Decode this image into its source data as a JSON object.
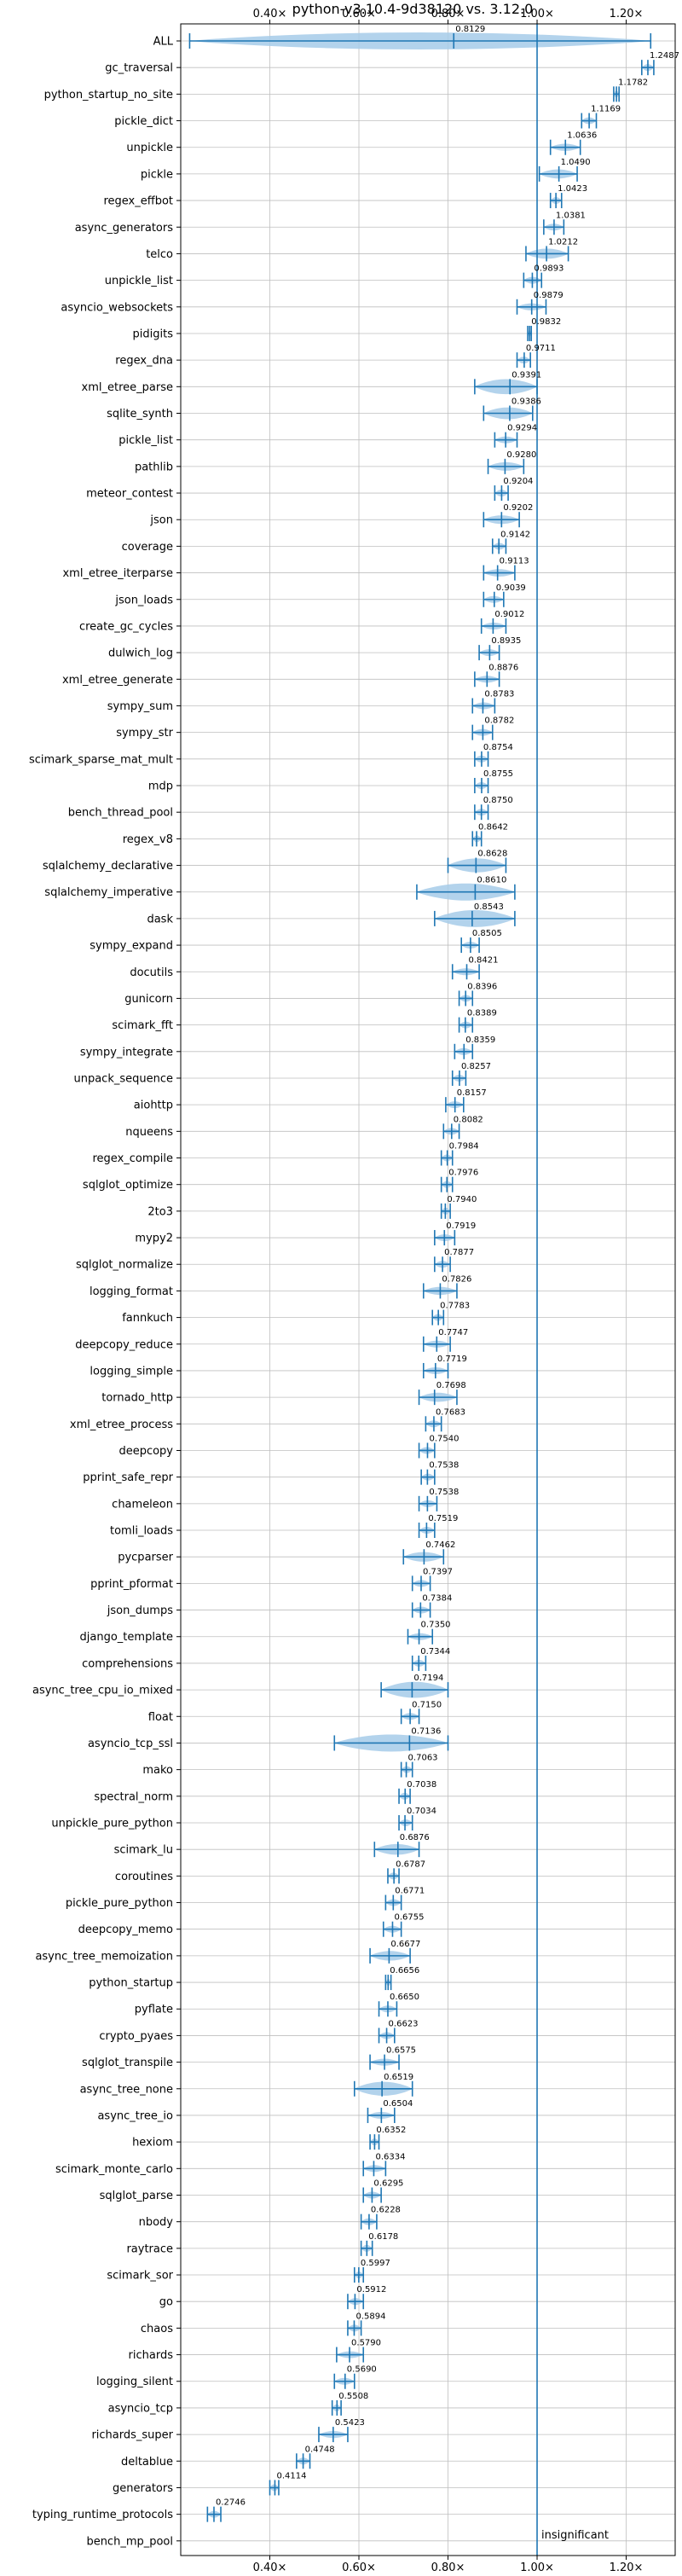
{
  "chart_data": {
    "type": "violin",
    "title": "python-v3.10.4-9d38120 vs. 3.12.0",
    "x_ticks": [
      "0.40×",
      "0.60×",
      "0.80×",
      "1.00×",
      "1.20×"
    ],
    "x_tick_values": [
      0.4,
      0.6,
      0.8,
      1.0,
      1.2
    ],
    "xlim": [
      0.2,
      1.31
    ],
    "grid": true,
    "reference_line": 1.0,
    "colors": {
      "violin": "#a6cbe9",
      "bar": "#1f77b4",
      "grid": "#bfbfbf"
    },
    "insignificant_label": "insignificant",
    "benchmarks": [
      {
        "name": "ALL",
        "value": 0.8129,
        "label": "0.8129",
        "lo": 0.22,
        "hi": 1.255
      },
      {
        "name": "gc_traversal",
        "value": 1.2487,
        "label": "1.2487",
        "lo": 1.235,
        "hi": 1.262
      },
      {
        "name": "python_startup_no_site",
        "value": 1.1782,
        "label": "1.1782",
        "lo": 1.172,
        "hi": 1.184
      },
      {
        "name": "pickle_dict",
        "value": 1.1169,
        "label": "1.1169",
        "lo": 1.1,
        "hi": 1.133
      },
      {
        "name": "unpickle",
        "value": 1.0636,
        "label": "1.0636",
        "lo": 1.03,
        "hi": 1.097
      },
      {
        "name": "pickle",
        "value": 1.049,
        "label": "1.0490",
        "lo": 1.005,
        "hi": 1.09
      },
      {
        "name": "regex_effbot",
        "value": 1.0423,
        "label": "1.0423",
        "lo": 1.03,
        "hi": 1.055
      },
      {
        "name": "async_generators",
        "value": 1.0381,
        "label": "1.0381",
        "lo": 1.015,
        "hi": 1.06
      },
      {
        "name": "telco",
        "value": 1.0212,
        "label": "1.0212",
        "lo": 0.975,
        "hi": 1.07
      },
      {
        "name": "unpickle_list",
        "value": 0.9893,
        "label": "0.9893",
        "lo": 0.97,
        "hi": 1.01
      },
      {
        "name": "asyncio_websockets",
        "value": 0.9879,
        "label": "0.9879",
        "lo": 0.955,
        "hi": 1.02
      },
      {
        "name": "pidigits",
        "value": 0.9832,
        "label": "0.9832",
        "lo": 0.979,
        "hi": 0.987
      },
      {
        "name": "regex_dna",
        "value": 0.9711,
        "label": "0.9711",
        "lo": 0.955,
        "hi": 0.985
      },
      {
        "name": "xml_etree_parse",
        "value": 0.9391,
        "label": "0.9391",
        "lo": 0.86,
        "hi": 1.0
      },
      {
        "name": "sqlite_synth",
        "value": 0.9386,
        "label": "0.9386",
        "lo": 0.88,
        "hi": 0.99
      },
      {
        "name": "pickle_list",
        "value": 0.9294,
        "label": "0.9294",
        "lo": 0.905,
        "hi": 0.955
      },
      {
        "name": "pathlib",
        "value": 0.928,
        "label": "0.9280",
        "lo": 0.89,
        "hi": 0.97
      },
      {
        "name": "meteor_contest",
        "value": 0.9204,
        "label": "0.9204",
        "lo": 0.905,
        "hi": 0.935
      },
      {
        "name": "json",
        "value": 0.9202,
        "label": "0.9202",
        "lo": 0.88,
        "hi": 0.96
      },
      {
        "name": "coverage",
        "value": 0.9142,
        "label": "0.9142",
        "lo": 0.9,
        "hi": 0.93
      },
      {
        "name": "xml_etree_iterparse",
        "value": 0.9113,
        "label": "0.9113",
        "lo": 0.88,
        "hi": 0.95
      },
      {
        "name": "json_loads",
        "value": 0.9039,
        "label": "0.9039",
        "lo": 0.88,
        "hi": 0.925
      },
      {
        "name": "create_gc_cycles",
        "value": 0.9012,
        "label": "0.9012",
        "lo": 0.875,
        "hi": 0.93
      },
      {
        "name": "dulwich_log",
        "value": 0.8935,
        "label": "0.8935",
        "lo": 0.87,
        "hi": 0.915
      },
      {
        "name": "xml_etree_generate",
        "value": 0.8876,
        "label": "0.8876",
        "lo": 0.86,
        "hi": 0.915
      },
      {
        "name": "sympy_sum",
        "value": 0.8783,
        "label": "0.8783",
        "lo": 0.855,
        "hi": 0.905
      },
      {
        "name": "sympy_str",
        "value": 0.8782,
        "label": "0.8782",
        "lo": 0.855,
        "hi": 0.9
      },
      {
        "name": "scimark_sparse_mat_mult",
        "value": 0.8754,
        "label": "0.8754",
        "lo": 0.86,
        "hi": 0.89
      },
      {
        "name": "mdp",
        "value": 0.8755,
        "label": "0.8755",
        "lo": 0.86,
        "hi": 0.89
      },
      {
        "name": "bench_thread_pool",
        "value": 0.875,
        "label": "0.8750",
        "lo": 0.86,
        "hi": 0.89
      },
      {
        "name": "regex_v8",
        "value": 0.8642,
        "label": "0.8642",
        "lo": 0.855,
        "hi": 0.875
      },
      {
        "name": "sqlalchemy_declarative",
        "value": 0.8628,
        "label": "0.8628",
        "lo": 0.8,
        "hi": 0.93
      },
      {
        "name": "sqlalchemy_imperative",
        "value": 0.861,
        "label": "0.8610",
        "lo": 0.73,
        "hi": 0.95
      },
      {
        "name": "dask",
        "value": 0.8543,
        "label": "0.8543",
        "lo": 0.77,
        "hi": 0.95
      },
      {
        "name": "sympy_expand",
        "value": 0.8505,
        "label": "0.8505",
        "lo": 0.83,
        "hi": 0.87
      },
      {
        "name": "docutils",
        "value": 0.8421,
        "label": "0.8421",
        "lo": 0.81,
        "hi": 0.87
      },
      {
        "name": "gunicorn",
        "value": 0.8396,
        "label": "0.8396",
        "lo": 0.825,
        "hi": 0.855
      },
      {
        "name": "scimark_fft",
        "value": 0.8389,
        "label": "0.8389",
        "lo": 0.825,
        "hi": 0.855
      },
      {
        "name": "sympy_integrate",
        "value": 0.8359,
        "label": "0.8359",
        "lo": 0.815,
        "hi": 0.855
      },
      {
        "name": "unpack_sequence",
        "value": 0.8257,
        "label": "0.8257",
        "lo": 0.81,
        "hi": 0.84
      },
      {
        "name": "aiohttp",
        "value": 0.8157,
        "label": "0.8157",
        "lo": 0.795,
        "hi": 0.835
      },
      {
        "name": "nqueens",
        "value": 0.8082,
        "label": "0.8082",
        "lo": 0.79,
        "hi": 0.825
      },
      {
        "name": "regex_compile",
        "value": 0.7984,
        "label": "0.7984",
        "lo": 0.785,
        "hi": 0.81
      },
      {
        "name": "sqlglot_optimize",
        "value": 0.7976,
        "label": "0.7976",
        "lo": 0.785,
        "hi": 0.81
      },
      {
        "name": "2to3",
        "value": 0.794,
        "label": "0.7940",
        "lo": 0.785,
        "hi": 0.805
      },
      {
        "name": "mypy2",
        "value": 0.7919,
        "label": "0.7919",
        "lo": 0.77,
        "hi": 0.815
      },
      {
        "name": "sqlglot_normalize",
        "value": 0.7877,
        "label": "0.7877",
        "lo": 0.77,
        "hi": 0.805
      },
      {
        "name": "logging_format",
        "value": 0.7826,
        "label": "0.7826",
        "lo": 0.745,
        "hi": 0.82
      },
      {
        "name": "fannkuch",
        "value": 0.7783,
        "label": "0.7783",
        "lo": 0.765,
        "hi": 0.79
      },
      {
        "name": "deepcopy_reduce",
        "value": 0.7747,
        "label": "0.7747",
        "lo": 0.745,
        "hi": 0.805
      },
      {
        "name": "logging_simple",
        "value": 0.7719,
        "label": "0.7719",
        "lo": 0.745,
        "hi": 0.8
      },
      {
        "name": "tornado_http",
        "value": 0.7698,
        "label": "0.7698",
        "lo": 0.735,
        "hi": 0.82
      },
      {
        "name": "xml_etree_process",
        "value": 0.7683,
        "label": "0.7683",
        "lo": 0.75,
        "hi": 0.785
      },
      {
        "name": "deepcopy",
        "value": 0.754,
        "label": "0.7540",
        "lo": 0.735,
        "hi": 0.77
      },
      {
        "name": "pprint_safe_repr",
        "value": 0.7538,
        "label": "0.7538",
        "lo": 0.74,
        "hi": 0.77
      },
      {
        "name": "chameleon",
        "value": 0.7538,
        "label": "0.7538",
        "lo": 0.735,
        "hi": 0.775
      },
      {
        "name": "tomli_loads",
        "value": 0.7519,
        "label": "0.7519",
        "lo": 0.735,
        "hi": 0.77
      },
      {
        "name": "pycparser",
        "value": 0.7462,
        "label": "0.7462",
        "lo": 0.7,
        "hi": 0.79
      },
      {
        "name": "pprint_pformat",
        "value": 0.7397,
        "label": "0.7397",
        "lo": 0.72,
        "hi": 0.76
      },
      {
        "name": "json_dumps",
        "value": 0.7384,
        "label": "0.7384",
        "lo": 0.72,
        "hi": 0.76
      },
      {
        "name": "django_template",
        "value": 0.735,
        "label": "0.7350",
        "lo": 0.71,
        "hi": 0.765
      },
      {
        "name": "comprehensions",
        "value": 0.7344,
        "label": "0.7344",
        "lo": 0.72,
        "hi": 0.75
      },
      {
        "name": "async_tree_cpu_io_mixed",
        "value": 0.7194,
        "label": "0.7194",
        "lo": 0.65,
        "hi": 0.8
      },
      {
        "name": "float",
        "value": 0.715,
        "label": "0.7150",
        "lo": 0.695,
        "hi": 0.735
      },
      {
        "name": "asyncio_tcp_ssl",
        "value": 0.7136,
        "label": "0.7136",
        "lo": 0.545,
        "hi": 0.8
      },
      {
        "name": "mako",
        "value": 0.7063,
        "label": "0.7063",
        "lo": 0.695,
        "hi": 0.72
      },
      {
        "name": "spectral_norm",
        "value": 0.7038,
        "label": "0.7038",
        "lo": 0.69,
        "hi": 0.715
      },
      {
        "name": "unpickle_pure_python",
        "value": 0.7034,
        "label": "0.7034",
        "lo": 0.69,
        "hi": 0.72
      },
      {
        "name": "scimark_lu",
        "value": 0.6876,
        "label": "0.6876",
        "lo": 0.635,
        "hi": 0.735
      },
      {
        "name": "coroutines",
        "value": 0.6787,
        "label": "0.6787",
        "lo": 0.665,
        "hi": 0.69
      },
      {
        "name": "pickle_pure_python",
        "value": 0.6771,
        "label": "0.6771",
        "lo": 0.66,
        "hi": 0.695
      },
      {
        "name": "deepcopy_memo",
        "value": 0.6755,
        "label": "0.6755",
        "lo": 0.655,
        "hi": 0.695
      },
      {
        "name": "async_tree_memoization",
        "value": 0.6677,
        "label": "0.6677",
        "lo": 0.625,
        "hi": 0.715
      },
      {
        "name": "python_startup",
        "value": 0.6656,
        "label": "0.6656",
        "lo": 0.66,
        "hi": 0.672
      },
      {
        "name": "pyflate",
        "value": 0.665,
        "label": "0.6650",
        "lo": 0.645,
        "hi": 0.685
      },
      {
        "name": "crypto_pyaes",
        "value": 0.6623,
        "label": "0.6623",
        "lo": 0.645,
        "hi": 0.68
      },
      {
        "name": "sqlglot_transpile",
        "value": 0.6575,
        "label": "0.6575",
        "lo": 0.625,
        "hi": 0.69
      },
      {
        "name": "async_tree_none",
        "value": 0.6519,
        "label": "0.6519",
        "lo": 0.59,
        "hi": 0.72
      },
      {
        "name": "async_tree_io",
        "value": 0.6504,
        "label": "0.6504",
        "lo": 0.62,
        "hi": 0.68
      },
      {
        "name": "hexiom",
        "value": 0.6352,
        "label": "0.6352",
        "lo": 0.625,
        "hi": 0.645
      },
      {
        "name": "scimark_monte_carlo",
        "value": 0.6334,
        "label": "0.6334",
        "lo": 0.61,
        "hi": 0.66
      },
      {
        "name": "sqlglot_parse",
        "value": 0.6295,
        "label": "0.6295",
        "lo": 0.61,
        "hi": 0.65
      },
      {
        "name": "nbody",
        "value": 0.6228,
        "label": "0.6228",
        "lo": 0.605,
        "hi": 0.64
      },
      {
        "name": "raytrace",
        "value": 0.6178,
        "label": "0.6178",
        "lo": 0.605,
        "hi": 0.63
      },
      {
        "name": "scimark_sor",
        "value": 0.5997,
        "label": "0.5997",
        "lo": 0.59,
        "hi": 0.61
      },
      {
        "name": "go",
        "value": 0.5912,
        "label": "0.5912",
        "lo": 0.575,
        "hi": 0.61
      },
      {
        "name": "chaos",
        "value": 0.5894,
        "label": "0.5894",
        "lo": 0.575,
        "hi": 0.605
      },
      {
        "name": "richards",
        "value": 0.579,
        "label": "0.5790",
        "lo": 0.55,
        "hi": 0.61
      },
      {
        "name": "logging_silent",
        "value": 0.569,
        "label": "0.5690",
        "lo": 0.545,
        "hi": 0.59
      },
      {
        "name": "asyncio_tcp",
        "value": 0.5508,
        "label": "0.5508",
        "lo": 0.54,
        "hi": 0.56
      },
      {
        "name": "richards_super",
        "value": 0.5423,
        "label": "0.5423",
        "lo": 0.51,
        "hi": 0.575
      },
      {
        "name": "deltablue",
        "value": 0.4748,
        "label": "0.4748",
        "lo": 0.46,
        "hi": 0.49
      },
      {
        "name": "generators",
        "value": 0.4114,
        "label": "0.4114",
        "lo": 0.4,
        "hi": 0.42
      },
      {
        "name": "typing_runtime_protocols",
        "value": 0.2746,
        "label": "0.2746",
        "lo": 0.26,
        "hi": 0.29
      },
      {
        "name": "bench_mp_pool",
        "value": null,
        "label": "",
        "lo": null,
        "hi": null
      }
    ]
  }
}
